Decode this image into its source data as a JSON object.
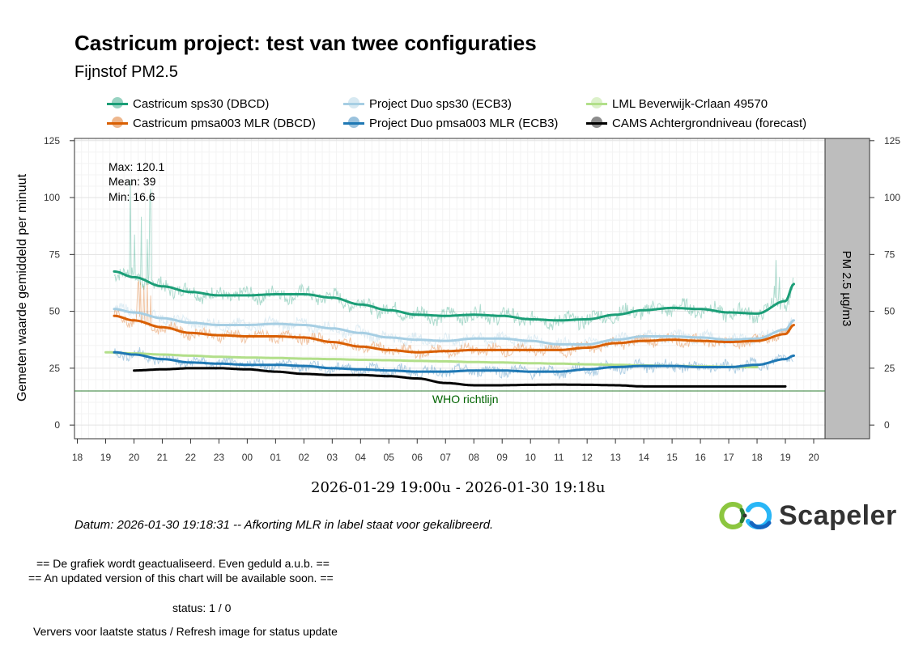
{
  "title": "Castricum project: test van twee configuraties",
  "subtitle": "Fijnstof PM2.5",
  "legend": [
    {
      "label": "Castricum sps30 (DBCD)",
      "color": "#1b9e77"
    },
    {
      "label": "Project Duo sps30 (ECB3)",
      "color": "#a6cee3"
    },
    {
      "label": "LML Beverwijk-Crlaan 49570",
      "color": "#b2df8a"
    },
    {
      "label": "Castricum pmsa003 MLR (DBCD)",
      "color": "#d95f02"
    },
    {
      "label": "Project Duo pmsa003 MLR (ECB3)",
      "color": "#1f78b4"
    },
    {
      "label": "CAMS Achtergrondniveau (forecast)",
      "color": "#000000"
    }
  ],
  "stats": {
    "max": "Max: 120.1",
    "mean": "Mean: 39",
    "min": "Min: 16.6"
  },
  "who_label": "WHO richtlijn",
  "period": "2026-01-29 19:00u - 2026-01-30 19:18u",
  "datum": "Datum: 2026-01-30 19:18:31 -- Afkorting MLR in label staat voor gekalibreerd.",
  "status_lines": [
    "== De grafiek wordt geactualiseerd. Even geduld a.u.b. ==",
    "== An updated version of this chart will be available soon. ==",
    "status: 1 / 0",
    "Ververs voor laatste status / Refresh image for status update"
  ],
  "logo_text": "Scapeler",
  "chart_data": {
    "type": "line",
    "title": "Castricum project: test van twee configuraties",
    "subtitle": "Fijnstof PM2.5",
    "ylabel": "Gemeten waarde gemiddeld per minuut",
    "ylabel_right": "PM 2.5 µg/m3",
    "ylim": [
      -6,
      126
    ],
    "yticks": [
      0,
      25,
      50,
      75,
      100,
      125
    ],
    "xlim": [
      17.9,
      44.4
    ],
    "x_unit": "hour since 2026-01-29 00:00",
    "x_ticks": [
      18,
      19,
      20,
      21,
      22,
      23,
      24,
      25,
      26,
      27,
      28,
      29,
      30,
      31,
      32,
      33,
      34,
      35,
      36,
      37,
      38,
      39,
      40,
      41,
      42,
      43,
      44
    ],
    "x_tick_labels": [
      "18",
      "19",
      "20",
      "21",
      "22",
      "23",
      "00",
      "01",
      "02",
      "03",
      "04",
      "05",
      "06",
      "07",
      "08",
      "09",
      "10",
      "11",
      "12",
      "13",
      "14",
      "15",
      "16",
      "17",
      "18",
      "19",
      "20"
    ],
    "grid": true,
    "legend_position": "top",
    "who_guideline": 15,
    "series": [
      {
        "name": "Castricum sps30 (DBCD)",
        "color": "#1b9e77",
        "kind": "raw+smooth",
        "x": [
          19.3,
          20,
          21,
          22,
          23,
          24,
          25,
          26,
          27,
          28,
          29,
          30,
          31,
          32,
          33,
          34,
          35,
          36,
          37,
          38,
          39,
          40,
          41,
          42,
          43,
          43.3
        ],
        "values": [
          67.5,
          65,
          61,
          58.5,
          57,
          57,
          57.5,
          57.5,
          56,
          53,
          50.5,
          48.5,
          48,
          48.5,
          48,
          46.5,
          46,
          46.5,
          48.5,
          50.5,
          51.5,
          51,
          49.5,
          49,
          54.5,
          62
        ]
      },
      {
        "name": "Project Duo sps30 (ECB3)",
        "color": "#a6cee3",
        "kind": "raw+smooth",
        "x": [
          19.3,
          20,
          21,
          22,
          23,
          24,
          25,
          26,
          27,
          28,
          29,
          30,
          31,
          32,
          33,
          34,
          35,
          36,
          37,
          38,
          39,
          40,
          41,
          42,
          43,
          43.3
        ],
        "values": [
          51,
          49.5,
          47,
          45,
          44,
          44,
          44.5,
          44,
          42.5,
          40.5,
          38.5,
          37.5,
          37,
          38,
          38,
          37,
          35.5,
          35.5,
          37.5,
          39,
          39,
          38.5,
          37.5,
          38,
          42,
          46
        ]
      },
      {
        "name": "LML Beverwijk-Crlaan 49570",
        "color": "#b2df8a",
        "kind": "smooth",
        "x": [
          19,
          20,
          21,
          22,
          23,
          24,
          25,
          26,
          27,
          28,
          29,
          30,
          31,
          32,
          33,
          34,
          35,
          36,
          37,
          38,
          39,
          40,
          41,
          42
        ],
        "values": [
          32,
          31.5,
          31,
          30.5,
          30,
          29.7,
          29.5,
          29.2,
          29,
          28.7,
          28.5,
          28.2,
          28,
          27.7,
          27.5,
          27.2,
          27,
          26.7,
          26.5,
          26.2,
          26,
          25.8,
          25.6,
          25.5
        ]
      },
      {
        "name": "Castricum pmsa003 MLR (DBCD)",
        "color": "#d95f02",
        "kind": "raw+smooth",
        "x": [
          19.3,
          20,
          21,
          22,
          23,
          24,
          25,
          26,
          27,
          28,
          29,
          30,
          31,
          32,
          33,
          34,
          35,
          36,
          37,
          38,
          39,
          40,
          41,
          42,
          43,
          43.3
        ],
        "values": [
          48,
          46,
          43,
          40.5,
          39.5,
          39,
          39,
          38.5,
          36.5,
          34.5,
          33,
          32,
          32.5,
          33,
          33,
          33,
          33,
          34,
          36,
          37,
          37.5,
          37,
          36.5,
          37,
          40,
          44
        ]
      },
      {
        "name": "Project Duo pmsa003 MLR (ECB3)",
        "color": "#1f78b4",
        "kind": "raw+smooth",
        "x": [
          19.3,
          20,
          21,
          22,
          23,
          24,
          25,
          26,
          27,
          28,
          29,
          30,
          31,
          32,
          33,
          34,
          35,
          36,
          37,
          38,
          39,
          40,
          41,
          42,
          43,
          43.3
        ],
        "values": [
          32,
          31,
          29,
          27.5,
          27,
          26.5,
          26.5,
          26,
          25,
          24.5,
          24,
          23.5,
          23.5,
          24,
          24,
          23.5,
          23.5,
          24.5,
          25.5,
          26,
          26,
          25.5,
          25.5,
          26.5,
          29,
          30.5
        ]
      },
      {
        "name": "CAMS Achtergrondniveau (forecast)",
        "color": "#000000",
        "kind": "smooth",
        "x": [
          20,
          21,
          22,
          23,
          24,
          25,
          26,
          27,
          28,
          29,
          30,
          31,
          32,
          33,
          34,
          35,
          36,
          37,
          38,
          39,
          40,
          41,
          42,
          43
        ],
        "values": [
          24,
          24.5,
          25,
          25,
          24.5,
          23.5,
          22.5,
          22,
          22,
          21.5,
          20.5,
          18.5,
          17.5,
          17.5,
          17.7,
          17.8,
          17.7,
          17.5,
          17,
          17,
          17,
          17,
          17,
          17
        ]
      }
    ]
  }
}
